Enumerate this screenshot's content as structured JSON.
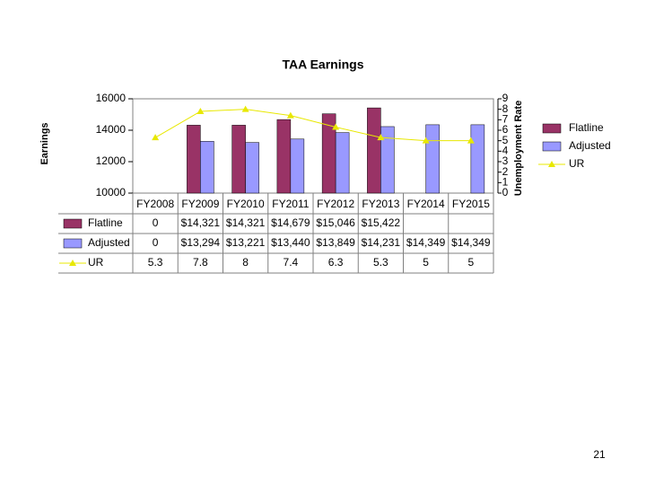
{
  "chart_data": {
    "type": "bar",
    "title": "TAA Earnings",
    "y_label": "Earnings",
    "y2_label": "Unemployment Rate",
    "categories": [
      "FY2008",
      "FY2009",
      "FY2010",
      "FY2011",
      "FY2012",
      "FY2013",
      "FY2014",
      "FY2015"
    ],
    "series": [
      {
        "name": "Flatline",
        "color": "#993366",
        "values": [
          0,
          14321,
          14321,
          14679,
          15046,
          15422,
          null,
          null
        ],
        "value_labels": [
          "0",
          "$14,321",
          "$14,321",
          "$14,679",
          "$15,046",
          "$15,422",
          null,
          null
        ]
      },
      {
        "name": "Adjusted",
        "color": "#9999ff",
        "values": [
          0,
          13294,
          13221,
          13440,
          13849,
          14231,
          14349,
          14349
        ],
        "value_labels": [
          "0",
          "$13,294",
          "$13,221",
          "$13,440",
          "$13,849",
          "$14,231",
          "$14,349",
          "$14,349"
        ]
      },
      {
        "name": "UR",
        "color": "#e8e800",
        "type": "line",
        "axis": "y2",
        "values": [
          5.3,
          7.8,
          8,
          7.4,
          6.3,
          5.3,
          5,
          5
        ]
      }
    ],
    "ylim": [
      10000,
      16000
    ],
    "yticks": [
      10000,
      12000,
      14000,
      16000
    ],
    "y2lim": [
      0,
      9
    ],
    "y2ticks": [
      0,
      1,
      2,
      3,
      4,
      5,
      6,
      7,
      8,
      9
    ],
    "legend": "right"
  },
  "page_number": "21"
}
